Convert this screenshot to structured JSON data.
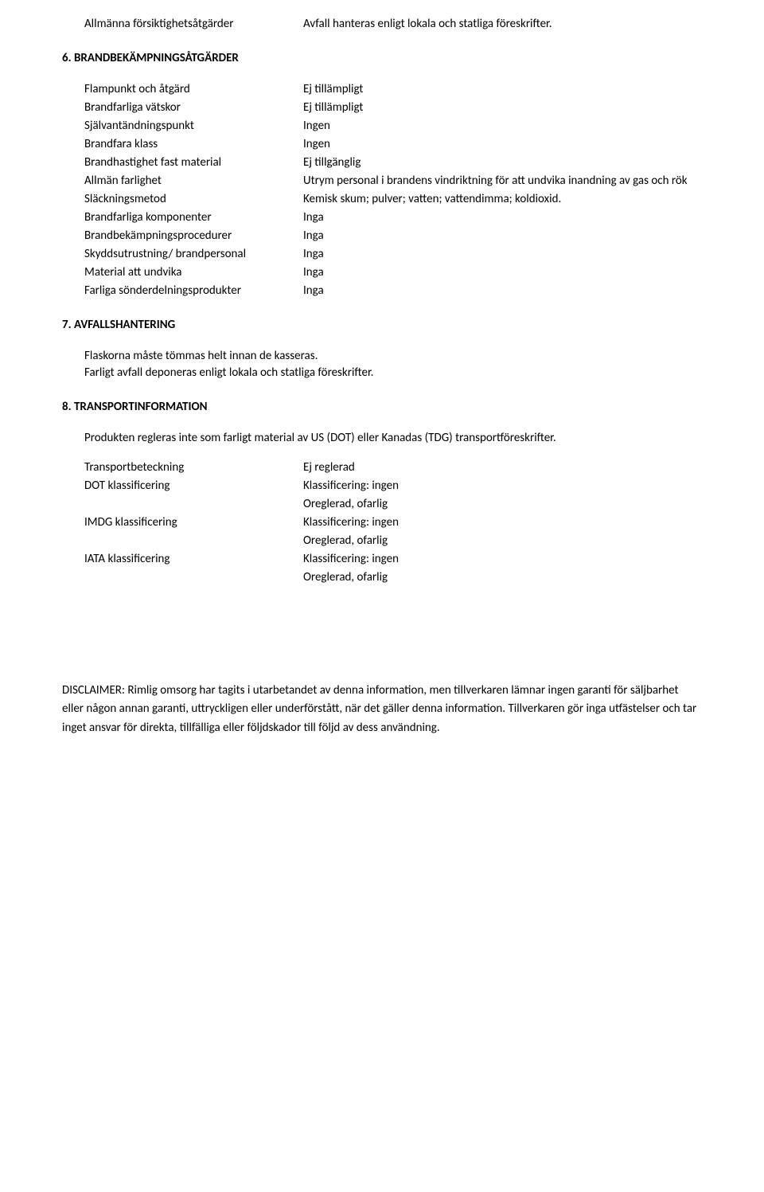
{
  "topRow": {
    "label": "Allmänna försiktighetsåtgärder",
    "value": "Avfall hanteras enligt lokala och statliga föreskrifter."
  },
  "sec6": {
    "heading": "6.  BRANDBEKÄMPNINGSÅTGÄRDER",
    "rows": [
      {
        "label": "Flampunkt och åtgärd",
        "value": "Ej tillämpligt"
      },
      {
        "label": "Brandfarliga vätskor",
        "value": "Ej tillämpligt"
      },
      {
        "label": "Självantändningspunkt",
        "value": "Ingen"
      },
      {
        "label": "Brandfara klass",
        "value": "Ingen"
      },
      {
        "label": "Brandhastighet fast material",
        "value": "Ej tillgänglig"
      },
      {
        "label": "Allmän farlighet",
        "value": "Utrym personal i brandens vindriktning för att undvika inandning av gas och rök"
      },
      {
        "label": "Släckningsmetod",
        "value": "Kemisk skum; pulver; vatten; vattendimma; koldioxid."
      },
      {
        "label": "Brandfarliga komponenter",
        "value": "Inga"
      },
      {
        "label": "Brandbekämpningsprocedurer",
        "value": "Inga"
      },
      {
        "label": "Skyddsutrustning/ brandpersonal",
        "value": "Inga"
      },
      {
        "label": "Material att undvika",
        "value": "Inga"
      },
      {
        "label": "Farliga sönderdelningsprodukter",
        "value": "Inga"
      }
    ]
  },
  "sec7": {
    "heading": "7.  AVFALLSHANTERING",
    "line1": "Flaskorna måste tömmas helt innan de kasseras.",
    "line2": "Farligt avfall deponeras enligt lokala och statliga föreskrifter."
  },
  "sec8": {
    "heading": "8.  TRANSPORTINFORMATION",
    "intro": "Produkten regleras inte som farligt material av US (DOT) eller Kanadas (TDG) transportföreskrifter.",
    "rows": [
      {
        "label": "Transportbeteckning",
        "value": "Ej reglerad"
      },
      {
        "label": "DOT klassificering",
        "value": "Klassificering: ingen"
      },
      {
        "label": "",
        "value": "Oreglerad, ofarlig"
      },
      {
        "label": "IMDG klassificering",
        "value": "Klassificering: ingen"
      },
      {
        "label": "",
        "value": "Oreglerad, ofarlig"
      },
      {
        "label": "IATA klassificering",
        "value": "Klassificering: ingen"
      },
      {
        "label": "",
        "value": "Oreglerad, ofarlig"
      }
    ]
  },
  "disclaimer": "DISCLAIMER: Rimlig omsorg har tagits i utarbetandet av denna information, men tillverkaren lämnar ingen garanti för säljbarhet eller någon annan garanti, uttryckligen eller underförstått, när det gäller denna information. Tillverkaren gör inga utfästelser och tar inget ansvar för direkta, tillfälliga eller följdskador till följd av dess användning."
}
